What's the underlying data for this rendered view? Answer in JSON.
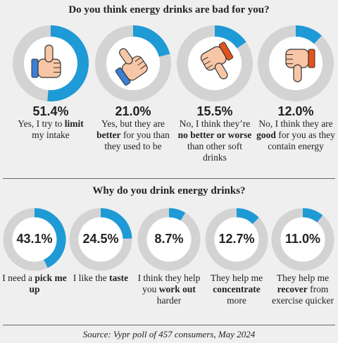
{
  "chart_data": [
    {
      "type": "donut",
      "title": "Do you think energy drinks are bad for you?",
      "categories": [
        [
          {
            "text": "Yes, I try to "
          },
          {
            "text": "limit",
            "bold": true
          },
          {
            "text": " my intake"
          }
        ],
        [
          {
            "text": "Yes, but they are "
          },
          {
            "text": "better",
            "bold": true
          },
          {
            "text": " for you than they used to be"
          }
        ],
        [
          {
            "text": "No, I think they’re "
          },
          {
            "text": "no better or worse",
            "bold": true
          },
          {
            "text": " than other soft drinks"
          }
        ],
        [
          {
            "text": "No, I think they are "
          },
          {
            "text": "good",
            "bold": true
          },
          {
            "text": " for you as they contain energy"
          }
        ]
      ],
      "values": [
        51.4,
        21.0,
        15.5,
        12.0
      ],
      "value_labels": [
        "51.4%",
        "21.0%",
        "15.5%",
        "12.0%"
      ],
      "color": "#1e9ad6",
      "track_color": "#d3d3d3"
    },
    {
      "type": "donut",
      "title": "Why do you drink energy drinks?",
      "categories": [
        [
          {
            "text": "I need a "
          },
          {
            "text": "pick me up",
            "bold": true
          }
        ],
        [
          {
            "text": "I like the "
          },
          {
            "text": "taste",
            "bold": true
          }
        ],
        [
          {
            "text": "I think they help you "
          },
          {
            "text": "work out",
            "bold": true
          },
          {
            "text": " harder"
          }
        ],
        [
          {
            "text": "They help me "
          },
          {
            "text": "concentrate",
            "bold": true
          },
          {
            "text": " more"
          }
        ],
        [
          {
            "text": "They help me "
          },
          {
            "text": "recover",
            "bold": true
          },
          {
            "text": " from exercise quicker"
          }
        ]
      ],
      "values": [
        43.1,
        24.5,
        8.7,
        12.7,
        11.0
      ],
      "value_labels": [
        "43.1%",
        "24.5%",
        "8.7%",
        "12.7%",
        "11.0%"
      ],
      "color": "#1e9ad6",
      "track_color": "#d3d3d3"
    }
  ],
  "source": "Source: Vypr poll of 457 consumers, May 2024"
}
